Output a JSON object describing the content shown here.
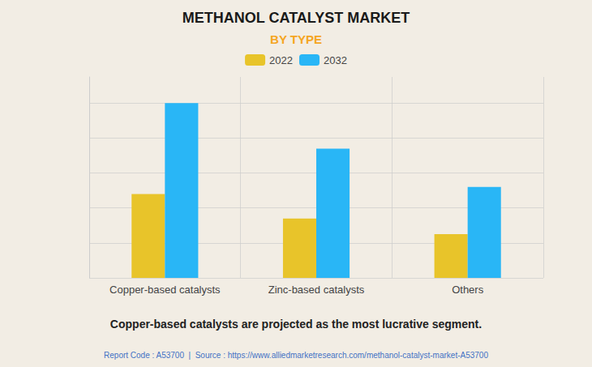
{
  "chart_data": {
    "type": "bar",
    "title": "METHANOL CATALYST MARKET",
    "subtitle": "BY TYPE",
    "subtitle_color": "#F5A623",
    "categories": [
      "Copper-based catalysts",
      "Zinc-based catalysts",
      "Others"
    ],
    "series": [
      {
        "name": "2022",
        "color": "#E8C42A",
        "values": [
          48,
          34,
          25
        ]
      },
      {
        "name": "2032",
        "color": "#29B6F6",
        "values": [
          100,
          74,
          52
        ]
      }
    ],
    "ylim": [
      0,
      115
    ],
    "yticks": [
      0,
      20,
      40,
      60,
      80,
      100
    ],
    "grid": true,
    "tick_labels": "x",
    "legend": "top",
    "annotations": [
      "Copper-based catalysts are projected as the most lucrative segment.",
      "Report Code : A53700  |  Source : https://www.alliedmarketresearch.com/methanol-catalyst-market-A53700"
    ]
  }
}
